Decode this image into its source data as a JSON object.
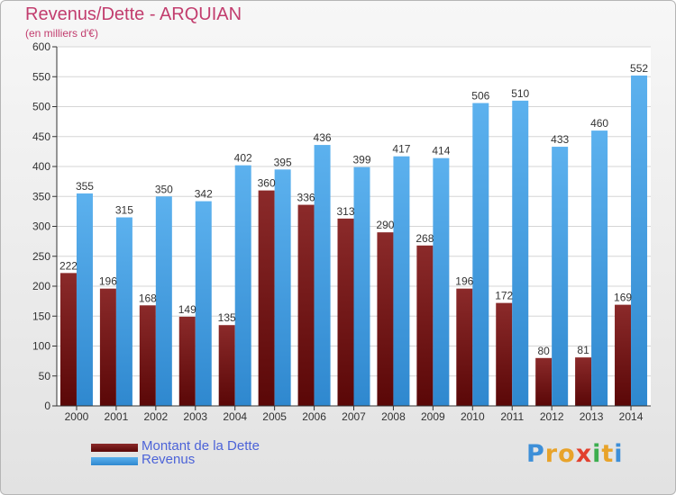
{
  "chart_data": {
    "type": "bar",
    "title": "Revenus/Dette - ARQUIAN",
    "subtitle": "(en milliers d'€)",
    "categories": [
      "2000",
      "2001",
      "2002",
      "2003",
      "2004",
      "2005",
      "2006",
      "2007",
      "2008",
      "2009",
      "2010",
      "2011",
      "2012",
      "2013",
      "2014"
    ],
    "series": [
      {
        "name": "Montant de la Dette",
        "color": "#7a1a1a",
        "values": [
          222,
          196,
          168,
          149,
          135,
          360,
          336,
          313,
          290,
          268,
          196,
          172,
          80,
          81,
          169
        ]
      },
      {
        "name": "Revenus",
        "color": "#4aa3e6",
        "values": [
          355,
          315,
          350,
          342,
          402,
          395,
          436,
          399,
          417,
          414,
          506,
          510,
          433,
          460,
          552
        ]
      }
    ],
    "ylim": [
      0,
      600
    ],
    "yticks": [
      0,
      50,
      100,
      150,
      200,
      250,
      300,
      350,
      400,
      450,
      500,
      550,
      600
    ],
    "grid": true,
    "legend": "bottom-left"
  },
  "logo": {
    "letters": [
      "P",
      "r",
      "o",
      "x",
      "i",
      "t",
      "i"
    ],
    "colors": [
      "#3d8fd8",
      "#e8a32a",
      "#e8a32a",
      "#e2402e",
      "#3cae4f",
      "#e8a32a",
      "#3d8fd8"
    ]
  }
}
